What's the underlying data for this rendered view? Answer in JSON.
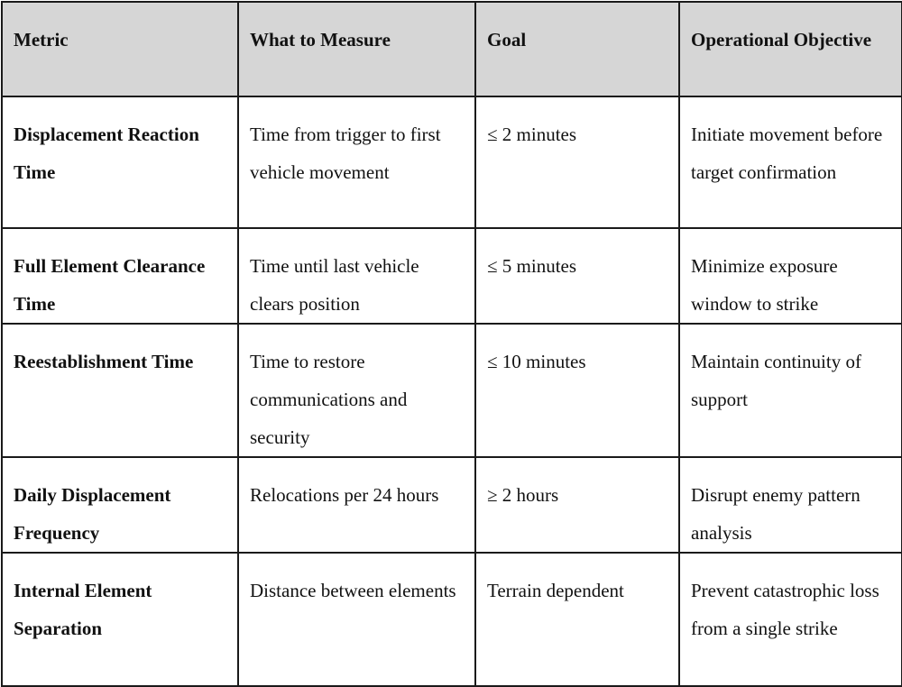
{
  "table": {
    "headers": [
      "Metric",
      "What to Measure",
      "Goal",
      "Operational Objective"
    ],
    "rows": [
      {
        "metric": "Displacement Reaction Time",
        "measure": "Time from trigger to first vehicle movement",
        "goal": "≤ 2 minutes",
        "objective": "Initiate movement before target confirmation"
      },
      {
        "metric": "Full Element Clearance Time",
        "measure": "Time until last vehicle clears position",
        "goal": "≤ 5 minutes",
        "objective": "Minimize exposure window to strike"
      },
      {
        "metric": "Reestablishment Time",
        "measure": "Time to restore communications and security",
        "goal": "≤ 10 minutes",
        "objective": "Maintain continuity of support"
      },
      {
        "metric": "Daily Displacement Frequency",
        "measure": "Relocations per 24 hours",
        "goal": "≥ 2 hours",
        "objective": "Disrupt enemy pattern analysis"
      },
      {
        "metric": "Internal Element Separation",
        "measure": "Distance between elements",
        "goal": "Terrain dependent",
        "objective": "Prevent catastrophic loss from a single strike"
      }
    ]
  }
}
